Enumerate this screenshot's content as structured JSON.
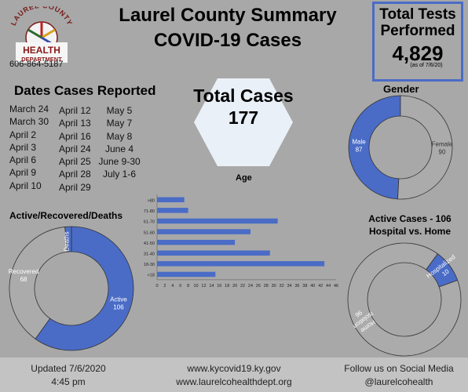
{
  "header": {
    "title_line1": "Laurel County Summary",
    "title_line2": "COVID-19 Cases"
  },
  "logo": {
    "arc_text": "LAUREL COUNTY",
    "health": "HEALTH",
    "department": "DEPARTMENT",
    "phone": "606-864-5187"
  },
  "total_tests": {
    "title_line1": "Total Tests",
    "title_line2": "Performed",
    "value": "4,829",
    "note": "(as of 7/6/20)"
  },
  "total_cases": {
    "label": "Total Cases",
    "value": "177"
  },
  "dates": {
    "title": "Dates Cases Reported",
    "col1": [
      "March 24",
      "March 30",
      "April 2",
      "April 3",
      "April 6",
      "April 9",
      "April 10"
    ],
    "col2": [
      "April 12",
      "April 13",
      "April 16",
      "April 24",
      "April 25",
      "April 28",
      "April 29"
    ],
    "col3": [
      "May 5",
      "May 7",
      "May 8",
      "June 4",
      "June 9-30",
      "July 1-6"
    ]
  },
  "colors": {
    "blue": "#4a6cc6",
    "grey": "#ababab",
    "background": "#a8a8a8"
  },
  "gender": {
    "title": "Gender",
    "chart_data": {
      "type": "pie",
      "labels": [
        "Male",
        "Female"
      ],
      "values": [
        87,
        90
      ],
      "colors": [
        "#4a6cc6",
        "#ababab"
      ]
    }
  },
  "age": {
    "title": "Age",
    "chart_data": {
      "type": "bar",
      "orientation": "horizontal",
      "categories": [
        ">80",
        "71-80",
        "61-70",
        "51-60",
        "41-50",
        "31-40",
        "18-30",
        "<18"
      ],
      "values": [
        7,
        8,
        31,
        24,
        20,
        29,
        43,
        15
      ],
      "xlim": [
        0,
        46
      ],
      "xticks": [
        0,
        2,
        4,
        6,
        8,
        10,
        12,
        14,
        16,
        18,
        20,
        22,
        24,
        26,
        28,
        30,
        32,
        34,
        36,
        38,
        40,
        42,
        44,
        46
      ]
    }
  },
  "outcome": {
    "title": "Active/Recovered/Deaths",
    "chart_data": {
      "type": "pie",
      "labels": [
        "Active",
        "Recovered",
        "Deaths"
      ],
      "values": [
        106,
        68,
        3
      ],
      "colors": [
        "#4a6cc6",
        "#ababab",
        "#4a6cc6"
      ]
    }
  },
  "active": {
    "title_line1": "Active Cases - 106",
    "title_line2": "Hospital vs. Home",
    "chart_data": {
      "type": "pie",
      "labels": [
        "Home Isolation",
        "Hospitalized"
      ],
      "values": [
        96,
        10
      ],
      "display_values": [
        "96",
        "10"
      ],
      "colors": [
        "#ababab",
        "#4a6cc6"
      ]
    }
  },
  "footer": {
    "updated": "Updated 7/6/2020",
    "time": "4:45 pm",
    "site1": "www.kycovid19.ky.gov",
    "site2": "www.laurelcohealthdept.org",
    "social": "Follow us on Social Media",
    "handle": "@laurelcohealth"
  }
}
